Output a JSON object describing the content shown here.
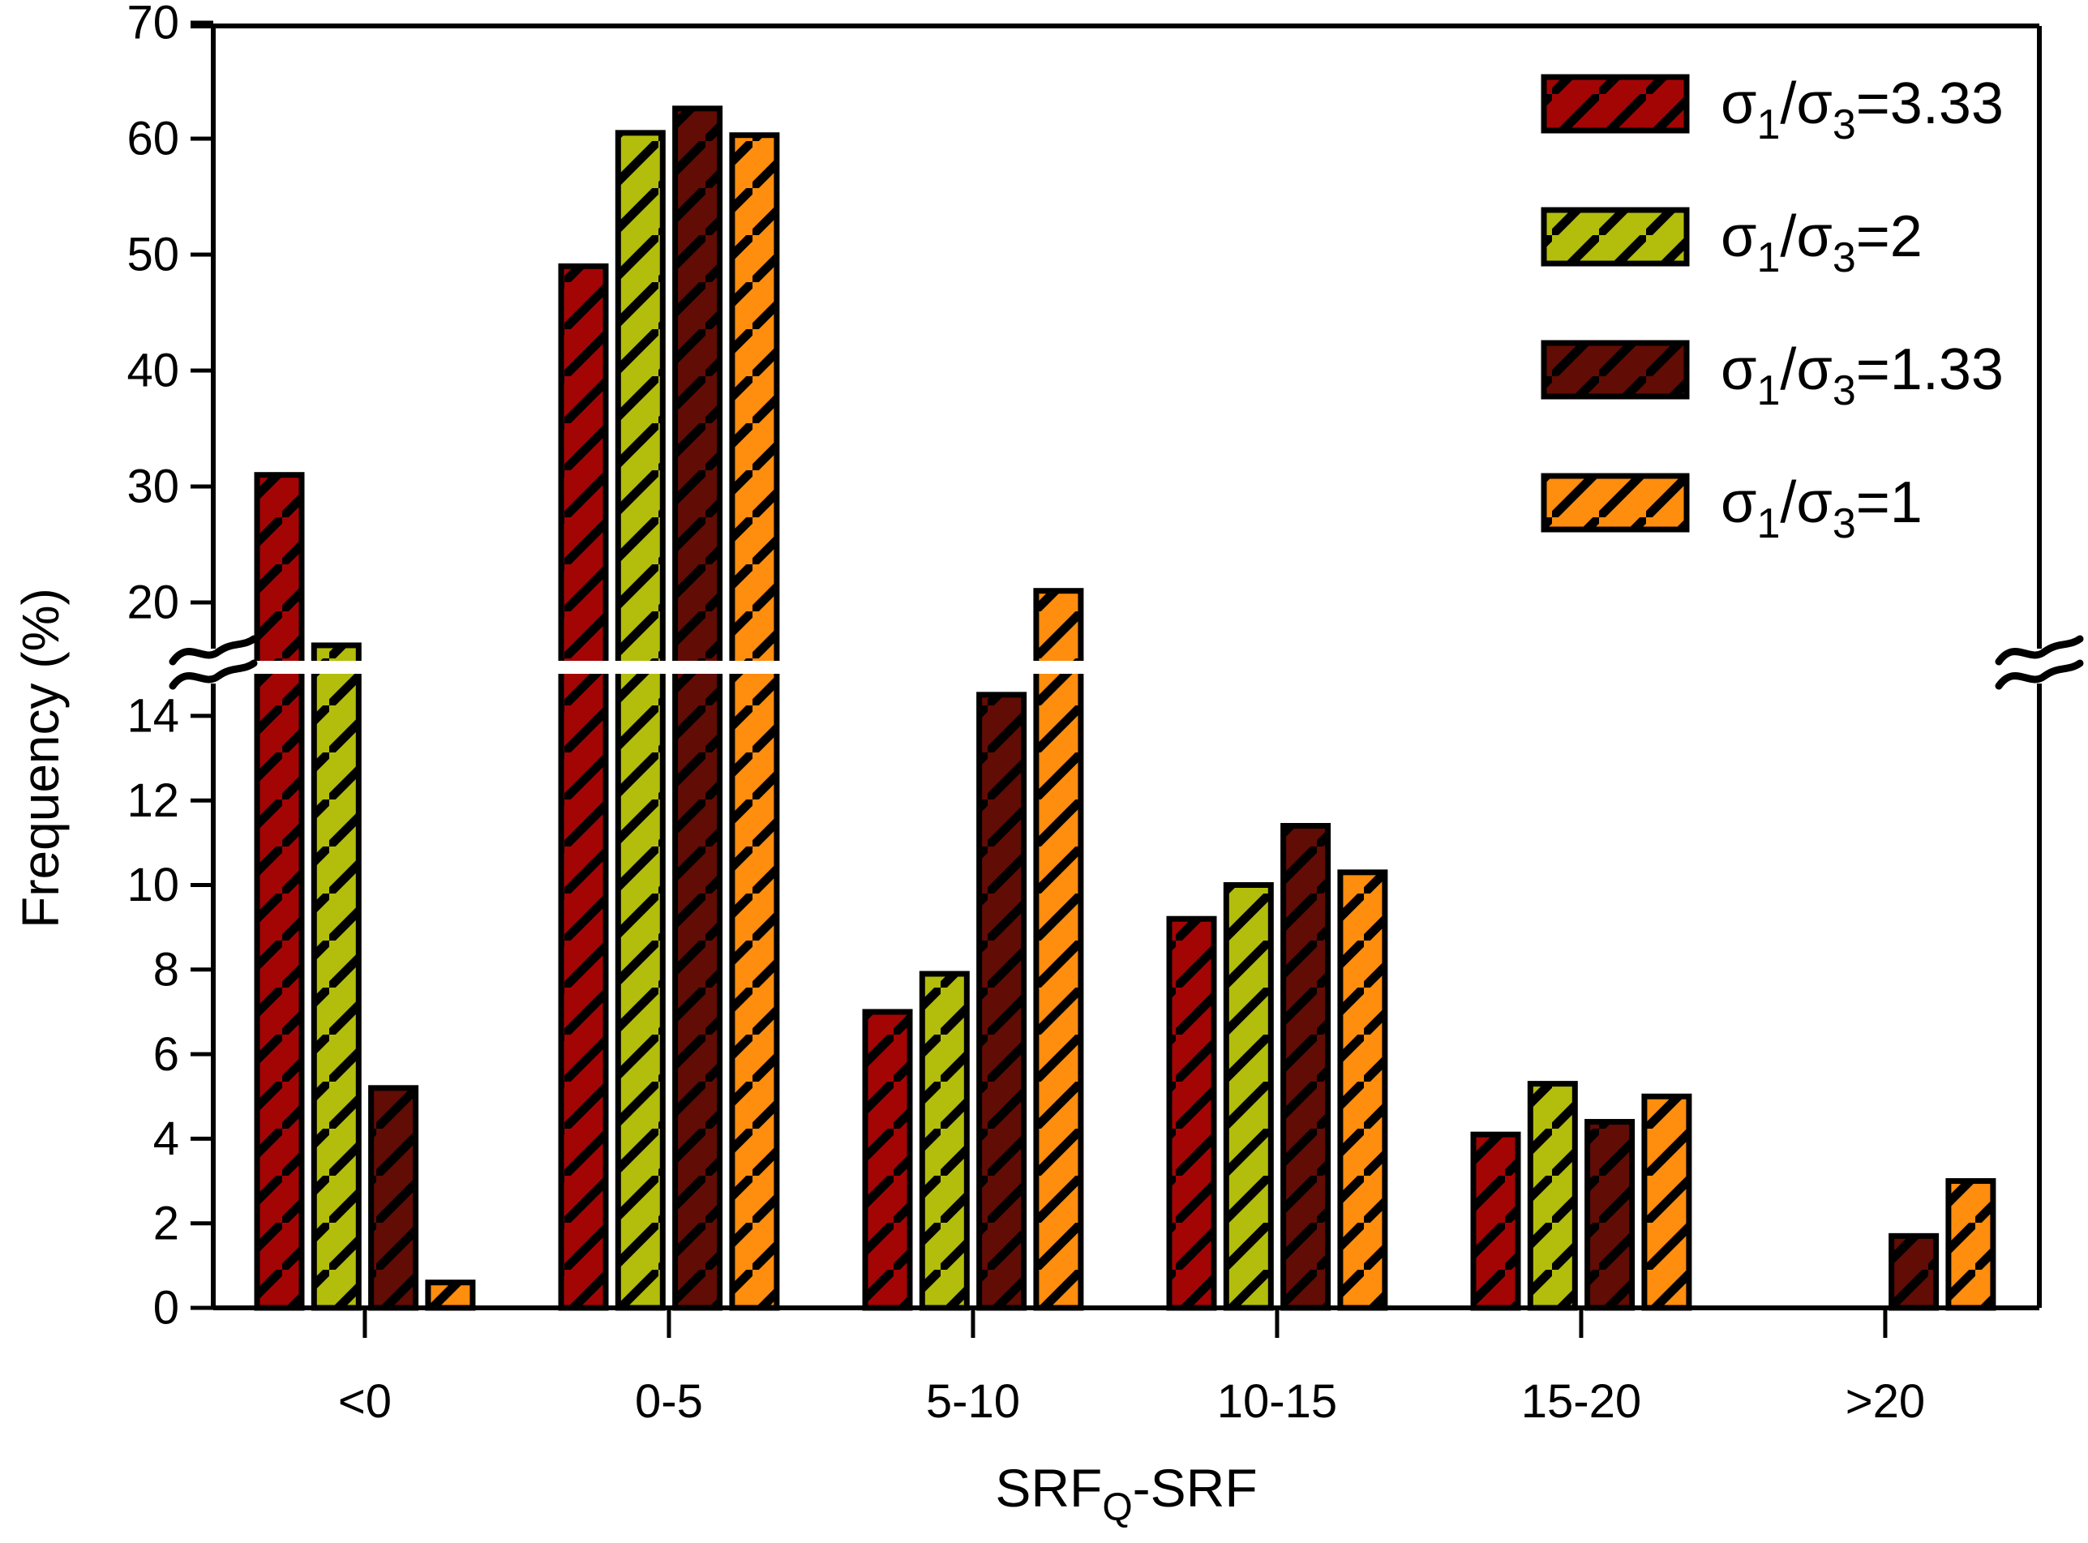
{
  "figure": {
    "background": "#FFFFFF",
    "frame_color": "#000000"
  },
  "chart_data": {
    "type": "bar",
    "title": "",
    "ylabel": "Frequency (%)",
    "xlabel_plain": "SRFQ-SRF",
    "xlabel_parts": [
      {
        "t": "SRF",
        "sub": false
      },
      {
        "t": "Q",
        "sub": true
      },
      {
        "t": "-SRF",
        "sub": false
      }
    ],
    "categories": [
      "<0",
      "0-5",
      "5-10",
      "10-15",
      "15-20",
      ">20"
    ],
    "series": [
      {
        "name": "σ1/σ3=3.33",
        "color": "#A30505",
        "label_parts": [
          {
            "t": "σ",
            "sub": false
          },
          {
            "t": "1",
            "sub": true
          },
          {
            "t": "/σ",
            "sub": false
          },
          {
            "t": "3",
            "sub": true
          },
          {
            "t": "=3.33",
            "sub": false
          }
        ],
        "values": [
          31.0,
          49.0,
          7.0,
          9.2,
          4.1,
          0
        ]
      },
      {
        "name": "σ1/σ3=2",
        "color": "#B2BE0B",
        "label_parts": [
          {
            "t": "σ",
            "sub": false
          },
          {
            "t": "1",
            "sub": true
          },
          {
            "t": "/σ",
            "sub": false
          },
          {
            "t": "3",
            "sub": true
          },
          {
            "t": "=2",
            "sub": false
          }
        ],
        "values": [
          16.3,
          60.5,
          7.9,
          10.0,
          5.3,
          0
        ]
      },
      {
        "name": "σ1/σ3=1.33",
        "color": "#610C04",
        "label_parts": [
          {
            "t": "σ",
            "sub": false
          },
          {
            "t": "1",
            "sub": true
          },
          {
            "t": "/σ",
            "sub": false
          },
          {
            "t": "3",
            "sub": true
          },
          {
            "t": "=1.33",
            "sub": false
          }
        ],
        "values": [
          5.2,
          62.6,
          14.5,
          11.4,
          4.4,
          1.7
        ]
      },
      {
        "name": "σ1/σ3=1",
        "color": "#FF8D0E",
        "label_parts": [
          {
            "t": "σ",
            "sub": false
          },
          {
            "t": "1",
            "sub": true
          },
          {
            "t": "/σ",
            "sub": false
          },
          {
            "t": "3",
            "sub": true
          },
          {
            "t": "=1",
            "sub": false
          }
        ],
        "values": [
          0.6,
          60.3,
          21.0,
          10.3,
          5.0,
          3.0
        ]
      }
    ],
    "y_lower_ticks": [
      "0",
      "2",
      "4",
      "6",
      "8",
      "10",
      "12",
      "14"
    ],
    "y_lower_tick_values": [
      0,
      2,
      4,
      6,
      8,
      10,
      12,
      14
    ],
    "y_upper_ticks": [
      "20",
      "30",
      "40",
      "50",
      "60",
      "70"
    ],
    "y_upper_tick_values": [
      20,
      30,
      40,
      50,
      60,
      70
    ],
    "ylim": [
      0,
      70
    ],
    "axis_break": {
      "lower_max": 15,
      "upper_min": 20
    },
    "grid": false,
    "hatch": "diagonal-forward",
    "legend_position": "top-right",
    "bar_outline_color": "#000000"
  }
}
